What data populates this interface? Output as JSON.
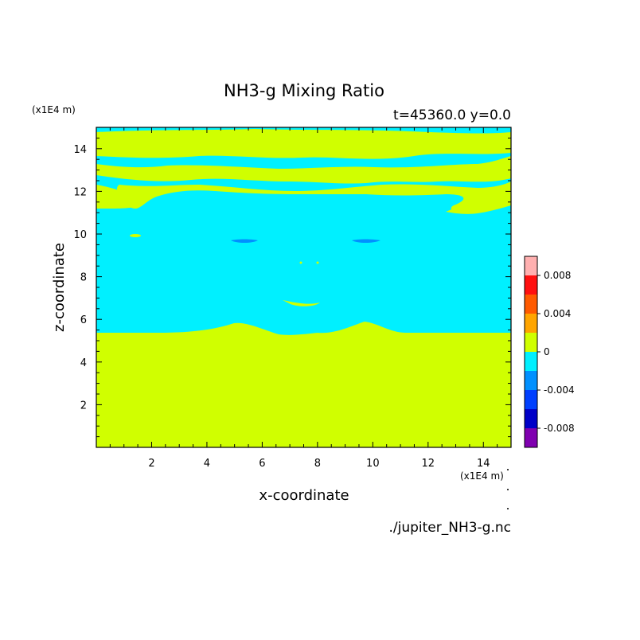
{
  "chart_data": {
    "type": "heatmap",
    "title": "NH3-g Mixing Ratio",
    "subtitle": "t=45360.0 y=0.0",
    "xlabel": "x-coordinate",
    "ylabel": "z-coordinate",
    "x_scale_label": "(x1E4 m)",
    "y_scale_label": "(x1E4 m)",
    "xlim": [
      0,
      15
    ],
    "ylim": [
      0,
      15
    ],
    "xticks": [
      2,
      4,
      6,
      8,
      10,
      12,
      14
    ],
    "yticks": [
      2,
      4,
      6,
      8,
      10,
      12,
      14
    ],
    "xtick_labels": [
      "2",
      "4",
      "6",
      "8",
      "10",
      "12",
      "14"
    ],
    "ytick_labels": [
      "2",
      "4",
      "6",
      "8",
      "10",
      "12",
      "14"
    ],
    "source_file": "./jupiter_NH3-g.nc",
    "colorbar": {
      "levels": [
        -0.01,
        -0.008,
        -0.006,
        -0.004,
        -0.002,
        0,
        0.002,
        0.004,
        0.006,
        0.008,
        0.01
      ],
      "colors": [
        "#8000b0",
        "#0000c8",
        "#0040ff",
        "#0090ff",
        "#00f0ff",
        "#d0ff00",
        "#ffa500",
        "#ff5a00",
        "#ff1010",
        "#ffb0b0"
      ],
      "tick_values": [
        -0.008,
        -0.004,
        0,
        0.004,
        0.008
      ],
      "tick_labels": [
        "-0.008",
        "-0.004",
        "0",
        "0.004",
        "0.008"
      ]
    },
    "background_level": "0 to 0.002",
    "regions_below_zero": "-0.002 to 0 band spans z ≈ 5.3–15 except upper yellow bands",
    "small_features": [
      {
        "x": 5.4,
        "z": 9.6,
        "level": "-0.004 to -0.002"
      },
      {
        "x": 9.6,
        "z": 9.6,
        "level": "-0.004 to -0.002"
      },
      {
        "x": 7.3,
        "z": 6.8,
        "level": "0 to 0.002"
      }
    ]
  }
}
